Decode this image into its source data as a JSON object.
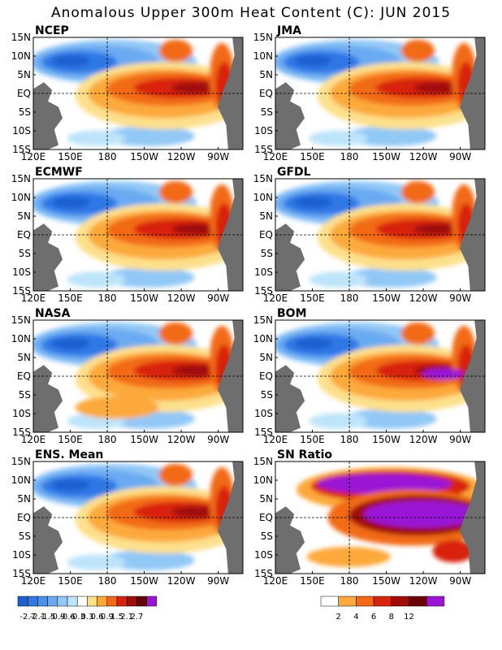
{
  "title": "Anomalous Upper 300m Heat Content (C): JUN 2015",
  "panels": [
    {
      "name": "NCEP"
    },
    {
      "name": "JMA"
    },
    {
      "name": "ECMWF"
    },
    {
      "name": "GFDL"
    },
    {
      "name": "NASA"
    },
    {
      "name": "BOM"
    },
    {
      "name": "ENS. Mean"
    },
    {
      "name": "SN Ratio"
    }
  ],
  "lat_labels": [
    "15N",
    "10N",
    "5N",
    "EQ",
    "5S",
    "10S",
    "15S"
  ],
  "lon_labels": [
    "120E",
    "150E",
    "180",
    "150W",
    "120W",
    "90W"
  ],
  "heat_legend": {
    "labels": [
      "-2.7",
      "-2.1",
      "-1.5",
      "-0.9",
      "-0.6",
      "-0.3",
      "0.3",
      "0.6",
      "0.9",
      "1.5",
      "2.1",
      "2.7"
    ],
    "colors": [
      "#1e5fd0",
      "#2f78e6",
      "#4a90f0",
      "#6aaaf2",
      "#92c8f6",
      "#bde4fa",
      "#ffffff",
      "#fde08c",
      "#fca93a",
      "#f26a16",
      "#d8240c",
      "#a00c08",
      "#6a0404",
      "#9a14d6"
    ]
  },
  "sn_legend": {
    "labels": [
      "2",
      "4",
      "6",
      "8",
      "12"
    ],
    "colors": [
      "#ffffff",
      "#fca93a",
      "#f26a16",
      "#d8240c",
      "#a00c08",
      "#6a0404",
      "#9a14d6"
    ]
  },
  "colors": {
    "land": "#6e6e6e",
    "frame": "#000000"
  }
}
